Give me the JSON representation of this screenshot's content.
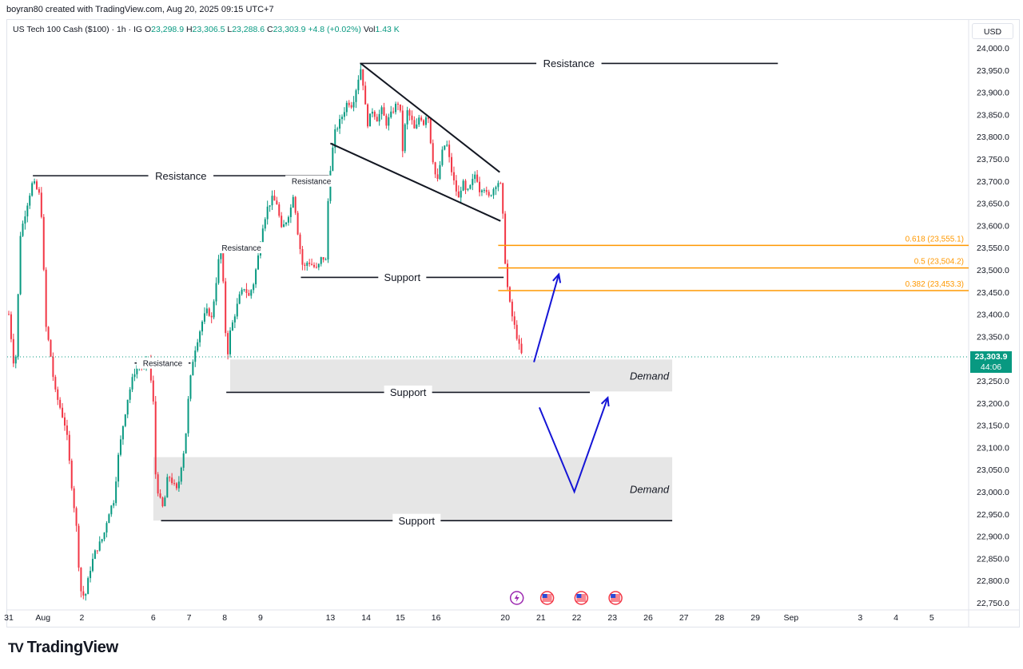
{
  "header": {
    "creator_line": "boyran80 created with TradingView.com, Aug 20, 2025 09:15 UTC+7"
  },
  "legend": {
    "symbol": "US Tech 100 Cash ($100) · 1h · IG",
    "open_label": "O",
    "open": "23,298.9",
    "high_label": "H",
    "high": "23,306.5",
    "low_label": "L",
    "low": "23,288.6",
    "close_label": "C",
    "close": "23,303.9",
    "change": "+4.8 (+0.02%)",
    "vol_label": "Vol",
    "vol": "1.43 K"
  },
  "currency": "USD",
  "brand": {
    "name": "TradingView",
    "logo_text": "TV"
  },
  "last_price": {
    "price": "23,303.9",
    "countdown": "44:06",
    "color": "#089981"
  },
  "colors": {
    "up": "#089981",
    "down": "#f23645",
    "fib": "#ff9800",
    "arrow": "#1515d6",
    "zone": "#e6e6e6"
  },
  "chart_data": {
    "type": "candlestick",
    "instrument": "US Tech 100 Cash ($100)",
    "timeframe": "1h",
    "ylim": [
      22730,
      24030
    ],
    "y_ticks": [
      24000,
      23950,
      23900,
      23850,
      23800,
      23750,
      23700,
      23650,
      23600,
      23550,
      23500,
      23450,
      23400,
      23350,
      23250,
      23200,
      23150,
      23100,
      23050,
      23000,
      22950,
      22900,
      22850,
      22800,
      22750
    ],
    "y_tick_labels": [
      "24,000.0",
      "23,950.0",
      "23,900.0",
      "23,850.0",
      "23,800.0",
      "23,750.0",
      "23,700.0",
      "23,650.0",
      "23,600.0",
      "23,550.0",
      "23,500.0",
      "23,450.0",
      "23,400.0",
      "23,350.0",
      "23,250.0",
      "23,200.0",
      "23,150.0",
      "23,100.0",
      "23,050.0",
      "23,000.0",
      "22,950.0",
      "22,900.0",
      "22,850.0",
      "22,800.0",
      "22,750.0"
    ],
    "x_ticks": [
      {
        "label": "31",
        "slot": 0
      },
      {
        "label": "Aug",
        "slot": 4.4
      },
      {
        "label": "2",
        "slot": 9.4
      },
      {
        "label": "6",
        "slot": 18.6
      },
      {
        "label": "7",
        "slot": 23.2
      },
      {
        "label": "8",
        "slot": 27.8
      },
      {
        "label": "9",
        "slot": 32.4
      },
      {
        "label": "13",
        "slot": 41.4
      },
      {
        "label": "14",
        "slot": 46.0
      },
      {
        "label": "15",
        "slot": 50.4
      },
      {
        "label": "16",
        "slot": 55.0
      },
      {
        "label": "20",
        "slot": 63.9
      },
      {
        "label": "21",
        "slot": 68.5
      },
      {
        "label": "22",
        "slot": 73.1
      },
      {
        "label": "23",
        "slot": 77.7
      },
      {
        "label": "26",
        "slot": 82.3
      },
      {
        "label": "27",
        "slot": 86.9
      },
      {
        "label": "28",
        "slot": 91.5
      },
      {
        "label": "29",
        "slot": 96.1
      },
      {
        "label": "Sep",
        "slot": 100.7
      },
      {
        "label": "3",
        "slot": 109.6
      },
      {
        "label": "4",
        "slot": 114.2
      },
      {
        "label": "5",
        "slot": 118.8
      }
    ],
    "price_path": [
      [
        0,
        23400
      ],
      [
        0.8,
        23260
      ],
      [
        1.5,
        23580
      ],
      [
        2.4,
        23650
      ],
      [
        3.1,
        23700
      ],
      [
        3.9,
        23670
      ],
      [
        4.3,
        23610
      ],
      [
        4.7,
        23380
      ],
      [
        5.3,
        23320
      ],
      [
        5.9,
        23230
      ],
      [
        6.6,
        23190
      ],
      [
        7.4,
        23140
      ],
      [
        8.0,
        23030
      ],
      [
        8.7,
        22920
      ],
      [
        9.2,
        22780
      ],
      [
        9.8,
        22760
      ],
      [
        10.4,
        22820
      ],
      [
        11.0,
        22860
      ],
      [
        11.6,
        22880
      ],
      [
        12.2,
        22900
      ],
      [
        12.8,
        22950
      ],
      [
        13.5,
        22980
      ],
      [
        14.1,
        23080
      ],
      [
        14.7,
        23150
      ],
      [
        15.3,
        23210
      ],
      [
        16.0,
        23260
      ],
      [
        16.6,
        23290
      ],
      [
        17.4,
        23280
      ],
      [
        18.0,
        23300
      ],
      [
        18.6,
        23200
      ],
      [
        18.9,
        23040
      ],
      [
        19.3,
        22990
      ],
      [
        19.9,
        22960
      ],
      [
        20.5,
        23040
      ],
      [
        21.1,
        23020
      ],
      [
        21.7,
        23000
      ],
      [
        22.2,
        23060
      ],
      [
        22.7,
        23110
      ],
      [
        23.2,
        23230
      ],
      [
        23.8,
        23310
      ],
      [
        24.4,
        23350
      ],
      [
        25.0,
        23390
      ],
      [
        25.6,
        23410
      ],
      [
        26.1,
        23390
      ],
      [
        26.6,
        23460
      ],
      [
        27.0,
        23520
      ],
      [
        27.4,
        23545
      ],
      [
        27.8,
        23390
      ],
      [
        28.1,
        23300
      ],
      [
        28.5,
        23360
      ],
      [
        29.1,
        23400
      ],
      [
        29.7,
        23440
      ],
      [
        30.3,
        23460
      ],
      [
        30.9,
        23440
      ],
      [
        31.5,
        23470
      ],
      [
        32.1,
        23530
      ],
      [
        32.7,
        23600
      ],
      [
        33.3,
        23640
      ],
      [
        33.9,
        23660
      ],
      [
        34.5,
        23650
      ],
      [
        35.1,
        23590
      ],
      [
        35.7,
        23610
      ],
      [
        36.3,
        23640
      ],
      [
        36.7,
        23680
      ],
      [
        37.0,
        23610
      ],
      [
        37.4,
        23560
      ],
      [
        37.9,
        23500
      ],
      [
        38.5,
        23520
      ],
      [
        39.1,
        23510
      ],
      [
        39.7,
        23500
      ],
      [
        40.3,
        23530
      ],
      [
        40.8,
        23520
      ],
      [
        41.2,
        23700
      ],
      [
        41.6,
        23760
      ],
      [
        42.0,
        23810
      ],
      [
        42.5,
        23830
      ],
      [
        43.0,
        23850
      ],
      [
        43.6,
        23880
      ],
      [
        44.2,
        23870
      ],
      [
        44.6,
        23900
      ],
      [
        45.1,
        23940
      ],
      [
        45.4,
        23960
      ],
      [
        45.8,
        23880
      ],
      [
        46.2,
        23830
      ],
      [
        46.8,
        23860
      ],
      [
        47.4,
        23840
      ],
      [
        48.0,
        23860
      ],
      [
        48.6,
        23830
      ],
      [
        49.2,
        23850
      ],
      [
        49.8,
        23870
      ],
      [
        50.3,
        23880
      ],
      [
        50.7,
        23770
      ],
      [
        51.2,
        23860
      ],
      [
        51.8,
        23840
      ],
      [
        52.3,
        23810
      ],
      [
        52.9,
        23850
      ],
      [
        53.4,
        23830
      ],
      [
        53.9,
        23860
      ],
      [
        54.3,
        23790
      ],
      [
        54.8,
        23720
      ],
      [
        55.2,
        23700
      ],
      [
        55.7,
        23760
      ],
      [
        56.3,
        23790
      ],
      [
        56.9,
        23730
      ],
      [
        57.4,
        23690
      ],
      [
        57.9,
        23660
      ],
      [
        58.4,
        23700
      ],
      [
        58.9,
        23670
      ],
      [
        59.5,
        23690
      ],
      [
        60.1,
        23720
      ],
      [
        60.6,
        23680
      ],
      [
        61.1,
        23690
      ],
      [
        61.7,
        23660
      ],
      [
        62.3,
        23680
      ],
      [
        62.9,
        23700
      ],
      [
        63.3,
        23690
      ],
      [
        63.6,
        23620
      ],
      [
        63.9,
        23520
      ],
      [
        64.2,
        23460
      ],
      [
        64.6,
        23410
      ],
      [
        65.0,
        23380
      ],
      [
        65.4,
        23350
      ],
      [
        65.8,
        23320
      ],
      [
        66.2,
        23300
      ]
    ],
    "drawings": {
      "resistance_lines": [
        {
          "label": "Resistance",
          "price": 23965,
          "from": 45.2,
          "to": 99
        },
        {
          "label": "Resistance",
          "price": 23712,
          "from": 3.1,
          "to": 41.2
        },
        {
          "label": "Resistance",
          "price": 23700,
          "from": 36.7,
          "to": 41.2
        },
        {
          "label": "Resistance",
          "price": 23550,
          "from": 27.4,
          "to": 32.5
        },
        {
          "label": "Resistance",
          "price": 23290,
          "from": 16.2,
          "to": 23.4
        }
      ],
      "support_lines": [
        {
          "label": "Support",
          "price": 23483,
          "from": 37.6,
          "to": 63.7
        },
        {
          "label": "Support",
          "price": 23224,
          "from": 28.0,
          "to": 74.8
        },
        {
          "label": "Support",
          "price": 22935,
          "from": 19.6,
          "to": 85.4
        }
      ],
      "falling_wedge": {
        "upper": [
          [
            45.3,
            23965
          ],
          [
            63.2,
            23720
          ]
        ],
        "lower": [
          [
            41.4,
            23785
          ],
          [
            63.3,
            23610
          ]
        ]
      },
      "fibonacci": [
        {
          "label": "0.618 (23,555.1)",
          "price": 23555.1
        },
        {
          "label": "0.5 (23,504.2)",
          "price": 23504.2
        },
        {
          "label": "0.382 (23,453.3)",
          "price": 23453.3
        }
      ],
      "demand_zones": [
        {
          "label": "Demand",
          "top": 23298,
          "bottom": 23226,
          "from": 28.5,
          "to": 85.4
        },
        {
          "label": "Demand",
          "top": 23078,
          "bottom": 22935,
          "from": 18.6,
          "to": 85.4
        }
      ],
      "arrows": [
        {
          "points": [
            [
              67.6,
              23292
            ],
            [
              70.8,
              23490
            ]
          ]
        },
        {
          "points": [
            [
              68.3,
              23190
            ],
            [
              72.8,
              23000
            ],
            [
              77.1,
              23212
            ]
          ]
        }
      ],
      "event_icons": [
        {
          "icon": "lightning-icon",
          "slot": 65.4
        },
        {
          "icon": "us-flag-icon",
          "slot": 69.3
        },
        {
          "icon": "us-flag-icon",
          "slot": 73.7
        },
        {
          "icon": "us-flag-icon",
          "slot": 78.1
        }
      ]
    }
  }
}
